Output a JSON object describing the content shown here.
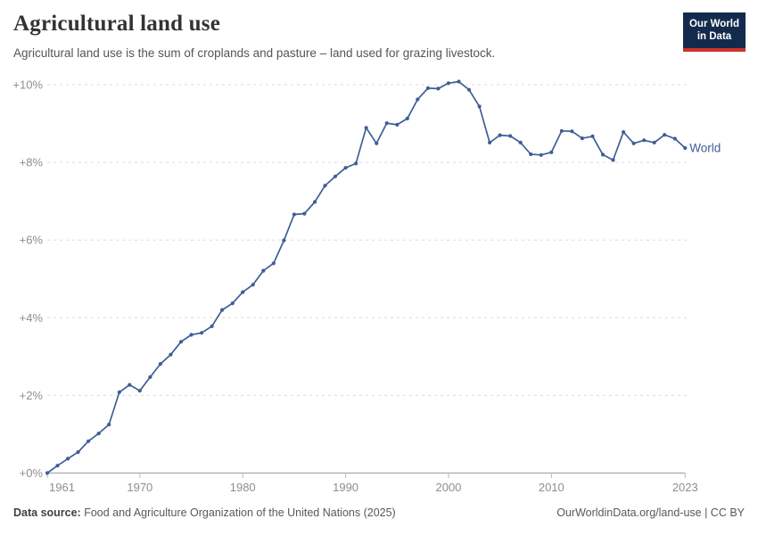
{
  "header": {
    "title": "Agricultural land use",
    "subtitle": "Agricultural land use is the sum of croplands and pasture – land used for grazing livestock.",
    "logo": {
      "line1": "Our World",
      "line2": "in Data",
      "bg_color": "#122B4D",
      "bar_color": "#CB342B"
    }
  },
  "footer": {
    "source_label": "Data source:",
    "source_text": " Food and Agriculture Organization of the United Nations (2025)",
    "credit": "OurWorldinData.org/land-use | CC BY"
  },
  "chart_data": {
    "type": "line",
    "title": "Agricultural land use",
    "series": [
      {
        "name": "World",
        "color": "#3F5E96",
        "x": [
          1961,
          1962,
          1963,
          1964,
          1965,
          1966,
          1967,
          1968,
          1969,
          1970,
          1971,
          1972,
          1973,
          1974,
          1975,
          1976,
          1977,
          1978,
          1979,
          1980,
          1981,
          1982,
          1983,
          1984,
          1985,
          1986,
          1987,
          1988,
          1989,
          1990,
          1991,
          1992,
          1993,
          1994,
          1995,
          1996,
          1997,
          1998,
          1999,
          2000,
          2001,
          2002,
          2003,
          2004,
          2005,
          2006,
          2007,
          2008,
          2009,
          2010,
          2011,
          2012,
          2013,
          2014,
          2015,
          2016,
          2017,
          2018,
          2019,
          2020,
          2021,
          2022,
          2023
        ],
        "values": [
          0,
          0.19,
          0.37,
          0.54,
          0.82,
          1.02,
          1.25,
          2.08,
          2.27,
          2.12,
          2.47,
          2.81,
          3.05,
          3.38,
          3.56,
          3.61,
          3.78,
          4.2,
          4.37,
          4.66,
          4.85,
          5.21,
          5.4,
          5.99,
          6.66,
          6.68,
          6.98,
          7.4,
          7.64,
          7.86,
          7.97,
          8.89,
          8.49,
          9.01,
          8.97,
          9.13,
          9.62,
          9.91,
          9.9,
          10.04,
          10.08,
          9.87,
          9.44,
          8.51,
          8.7,
          8.68,
          8.51,
          8.21,
          8.19,
          8.26,
          8.81,
          8.8,
          8.62,
          8.67,
          8.2,
          8.06,
          8.78,
          8.49,
          8.57,
          8.51,
          8.71,
          8.61,
          8.37
        ]
      }
    ],
    "unit": "% change since 1961",
    "xlim": [
      1961,
      2023
    ],
    "ylim": [
      0,
      10
    ],
    "xticks": [
      1961,
      1970,
      1980,
      1990,
      2000,
      2010,
      2023
    ],
    "yticks": [
      {
        "value": 0,
        "label": "+0%"
      },
      {
        "value": 2,
        "label": "+2%"
      },
      {
        "value": 4,
        "label": "+4%"
      },
      {
        "value": 6,
        "label": "+6%"
      },
      {
        "value": 8,
        "label": "+8%"
      },
      {
        "value": 10,
        "label": "+10%"
      }
    ],
    "grid": "dashed horizontal",
    "legend_position": "end-of-line label",
    "colors": {
      "grid": "#dcdcdc",
      "axis": "#9e9e9e",
      "tick": "#b8b8b8",
      "axis_text": "#8e8e8e"
    }
  }
}
